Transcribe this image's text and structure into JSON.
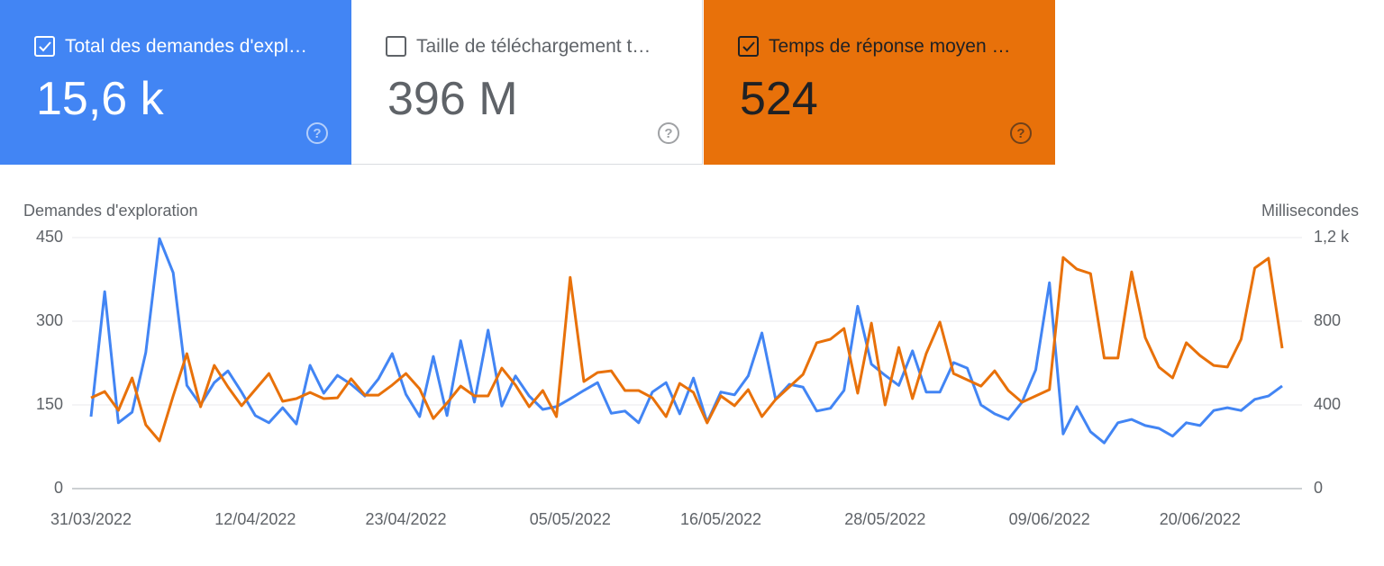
{
  "cards": [
    {
      "label": "Total des demandes d'expl…",
      "value": "15,6 k",
      "checked": true,
      "color": "#4285f4",
      "text_color": "#ffffff"
    },
    {
      "label": "Taille de téléchargement t…",
      "value": "396 M",
      "checked": false,
      "color": "#ffffff",
      "text_color": "#5f6368"
    },
    {
      "label": "Temps de réponse moyen …",
      "value": "524",
      "checked": true,
      "color": "#e8710a",
      "text_color": "#202124"
    }
  ],
  "chart_data": {
    "type": "line",
    "y_label": "Demandes d'exploration",
    "y2_label": "Millisecondes",
    "categories": [
      "31/03/2022",
      null,
      null,
      null,
      null,
      null,
      null,
      null,
      null,
      null,
      null,
      null,
      "12/04/2022",
      null,
      null,
      null,
      null,
      null,
      null,
      null,
      null,
      null,
      null,
      "23/04/2022",
      null,
      null,
      null,
      null,
      null,
      null,
      null,
      null,
      null,
      null,
      null,
      "05/05/2022",
      null,
      null,
      null,
      null,
      null,
      null,
      null,
      null,
      null,
      null,
      "16/05/2022",
      null,
      null,
      null,
      null,
      null,
      null,
      null,
      null,
      null,
      null,
      null,
      "28/05/2022",
      null,
      null,
      null,
      null,
      null,
      null,
      null,
      null,
      null,
      null,
      null,
      "09/06/2022",
      null,
      null,
      null,
      null,
      null,
      null,
      null,
      null,
      null,
      null,
      "20/06/2022",
      null,
      null,
      null,
      null,
      null,
      null
    ],
    "series": [
      {
        "color": "#4285f4",
        "axis": "y",
        "values": [
          129,
          353,
          118,
          137,
          244,
          448,
          387,
          185,
          150,
          190,
          211,
          173,
          131,
          118,
          145,
          116,
          221,
          171,
          203,
          187,
          166,
          197,
          242,
          169,
          129,
          237,
          131,
          265,
          155,
          284,
          148,
          202,
          166,
          142,
          147,
          161,
          176,
          190,
          135,
          139,
          118,
          173,
          190,
          134,
          198,
          119,
          173,
          168,
          202,
          279,
          160,
          187,
          182,
          139,
          144,
          176,
          327,
          223,
          203,
          185,
          247,
          173,
          173,
          226,
          216,
          150,
          134,
          124,
          155,
          213,
          369,
          98,
          147,
          102,
          82,
          118,
          124,
          113,
          108,
          94,
          118,
          113,
          140,
          145,
          140,
          160,
          166,
          184
        ]
      },
      {
        "color": "#e8710a",
        "axis": "y2",
        "values": [
          434,
          464,
          374,
          529,
          305,
          228,
          443,
          645,
          391,
          589,
          486,
          396,
          473,
          550,
          417,
          430,
          460,
          430,
          434,
          525,
          447,
          447,
          495,
          550,
          477,
          335,
          409,
          490,
          443,
          443,
          576,
          495,
          391,
          469,
          344,
          1010,
          512,
          555,
          563,
          469,
          469,
          434,
          344,
          503,
          460,
          314,
          443,
          396,
          473,
          344,
          426,
          486,
          546,
          697,
          714,
          765,
          456,
          791,
          400,
          675,
          430,
          645,
          796,
          550,
          520,
          490,
          563,
          469,
          413,
          443,
          473,
          1105,
          1049,
          1028,
          624,
          624,
          1036,
          722,
          581,
          529,
          697,
          636,
          589,
          581,
          714,
          1054,
          1101,
          671
        ]
      }
    ],
    "ylim": [
      0,
      450
    ],
    "yticks": [
      0,
      150,
      300,
      450
    ],
    "y2lim": [
      0,
      1200
    ],
    "y2ticks": [
      0,
      400,
      800,
      {
        "value": 1200,
        "label": "1,2 k"
      }
    ],
    "grid": true
  }
}
